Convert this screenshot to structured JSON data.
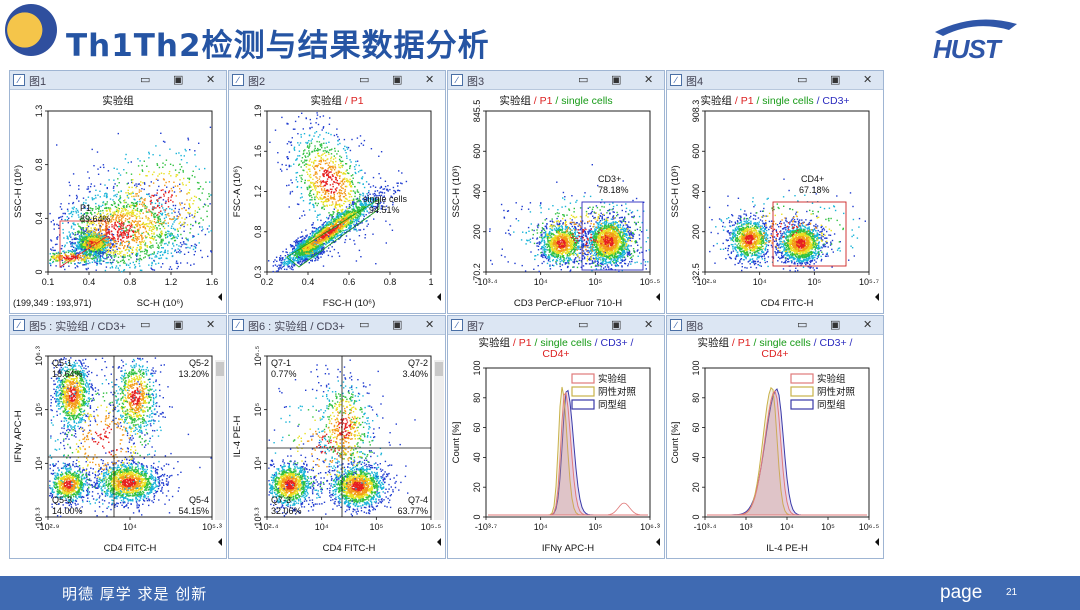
{
  "header": {
    "title": "Th1Th2检测与结果数据分析",
    "brand_text": "HUST"
  },
  "footer": {
    "motto": "明德  厚学  求是  创新",
    "page_label": "page",
    "page_number": "21"
  },
  "colors": {
    "accent": "#2554a3",
    "footer": "#3f6ab2",
    "titlebar": "#dce6f3"
  },
  "window_controls": [
    "minimize-icon",
    "restore-icon",
    "close-icon"
  ],
  "panels": [
    {
      "name": "图1",
      "title": [
        "实验组"
      ],
      "title_colors": [
        "black"
      ],
      "xlabel": "SC-H (10⁶)",
      "ylabel": "SSC-H (10⁶)",
      "xticks": [
        "0.1",
        "0.4",
        "0.8",
        "1.2",
        "1.6"
      ],
      "yticks": [
        "1.3",
        "0.8",
        "0.4",
        "0"
      ],
      "coord": "(199,349 : 193,971)",
      "gates": [
        {
          "label": "P1",
          "value": "89.64%",
          "color": "#d22"
        }
      ]
    },
    {
      "name": "图2",
      "title": [
        "实验组",
        " / P1"
      ],
      "title_colors": [
        "black",
        "red"
      ],
      "xlabel": "FSC-H (10⁶)",
      "ylabel": "FSC-A (10⁶)",
      "xticks": [
        "0.2",
        "0.4",
        "0.6",
        "0.8",
        "1"
      ],
      "yticks": [
        "1.9",
        "1.6",
        "1.2",
        "0.8",
        "0.3"
      ],
      "gates": [
        {
          "label": "single cells",
          "value": "94.51%",
          "color": "#159a15"
        }
      ]
    },
    {
      "name": "图3",
      "title": [
        "实验组",
        " / P1",
        " / single cells"
      ],
      "title_colors": [
        "black",
        "red",
        "green"
      ],
      "xlabel": "CD3 PerCP-eFluor 710-H",
      "ylabel": "SSC-H (10³)",
      "xticks": [
        "-10³·⁴",
        "10⁴",
        "10⁵",
        "10⁵·⁵"
      ],
      "yticks": [
        "845.5",
        "600",
        "400",
        "200",
        "70.2"
      ],
      "gates": [
        {
          "label": "CD3+",
          "value": "78.18%",
          "color": "#2b2bbf"
        }
      ]
    },
    {
      "name": "图4",
      "title": [
        "实验组",
        " / P1",
        " / single cells",
        " / CD3+"
      ],
      "title_colors": [
        "black",
        "red",
        "green",
        "blue"
      ],
      "xlabel": "CD4 FITC-H",
      "ylabel": "SSC-H (10³)",
      "xticks": [
        "-10²·⁸",
        "10⁴",
        "10⁵",
        "10⁵·⁷"
      ],
      "yticks": [
        "908.3",
        "600",
        "400",
        "200",
        "32.5"
      ],
      "gates": [
        {
          "label": "CD4+",
          "value": "67.18%",
          "color": "#c22"
        }
      ]
    },
    {
      "name": "图5 : 实验组 / CD3+",
      "title": [],
      "title_colors": [],
      "xlabel": "CD4 FITC-H",
      "ylabel": "IFNγ APC-H",
      "xticks": [
        "-10²·⁹",
        "10⁴",
        "10⁵·³"
      ],
      "yticks": [
        "10⁶·³",
        "10⁵",
        "10⁴",
        "10³·³"
      ],
      "quadrants": [
        {
          "label": "Q5-1",
          "value": "18.64%"
        },
        {
          "label": "Q5-2",
          "value": "13.20%"
        },
        {
          "label": "Q5-3",
          "value": "14.00%"
        },
        {
          "label": "Q5-4",
          "value": "54.15%"
        }
      ]
    },
    {
      "name": "图6 : 实验组 / CD3+",
      "title": [],
      "title_colors": [],
      "xlabel": "CD4 FITC-H",
      "ylabel": "IL-4 PE-H",
      "xticks": [
        "-10²·⁴",
        "10⁴",
        "10⁵",
        "10⁵·⁵"
      ],
      "yticks": [
        "10⁶·⁵",
        "10⁵",
        "10⁴",
        "10³·³"
      ],
      "quadrants": [
        {
          "label": "Q7-1",
          "value": "0.77%"
        },
        {
          "label": "Q7-2",
          "value": "3.40%"
        },
        {
          "label": "Q7-3",
          "value": "32.06%"
        },
        {
          "label": "Q7-4",
          "value": "63.77%"
        }
      ]
    },
    {
      "name": "图7",
      "title": [
        "实验组",
        " / P1",
        " / single cells",
        " / CD3+ /",
        "CD4+"
      ],
      "title_colors": [
        "black",
        "red",
        "green",
        "blue",
        "red"
      ],
      "xlabel": "IFNγ APC-H",
      "ylabel": "Count [%]",
      "xticks": [
        "-10³·⁷",
        "10⁴",
        "10⁵",
        "10⁶·³"
      ],
      "yticks": [
        "100",
        "80",
        "60",
        "40",
        "20",
        "0"
      ],
      "legend": [
        {
          "label": "实验组",
          "color": "#e07a7a"
        },
        {
          "label": "阴性对照",
          "color": "#c8b24a"
        },
        {
          "label": "同型组",
          "color": "#3a3aa8"
        }
      ]
    },
    {
      "name": "图8",
      "title": [
        "实验组",
        " / P1",
        " / single cells",
        " / CD3+ /",
        "CD4+"
      ],
      "title_colors": [
        "black",
        "red",
        "green",
        "blue",
        "red"
      ],
      "xlabel": "IL-4 PE-H",
      "ylabel": "Count [%]",
      "xticks": [
        "-10³·⁴",
        "10³",
        "10⁴",
        "10⁵",
        "10⁶·⁵"
      ],
      "yticks": [
        "100",
        "80",
        "60",
        "40",
        "20",
        "0"
      ],
      "legend": [
        {
          "label": "实验组",
          "color": "#e07a7a"
        },
        {
          "label": "阴性对照",
          "color": "#c8b24a"
        },
        {
          "label": "同型组",
          "color": "#3a3aa8"
        }
      ]
    }
  ]
}
